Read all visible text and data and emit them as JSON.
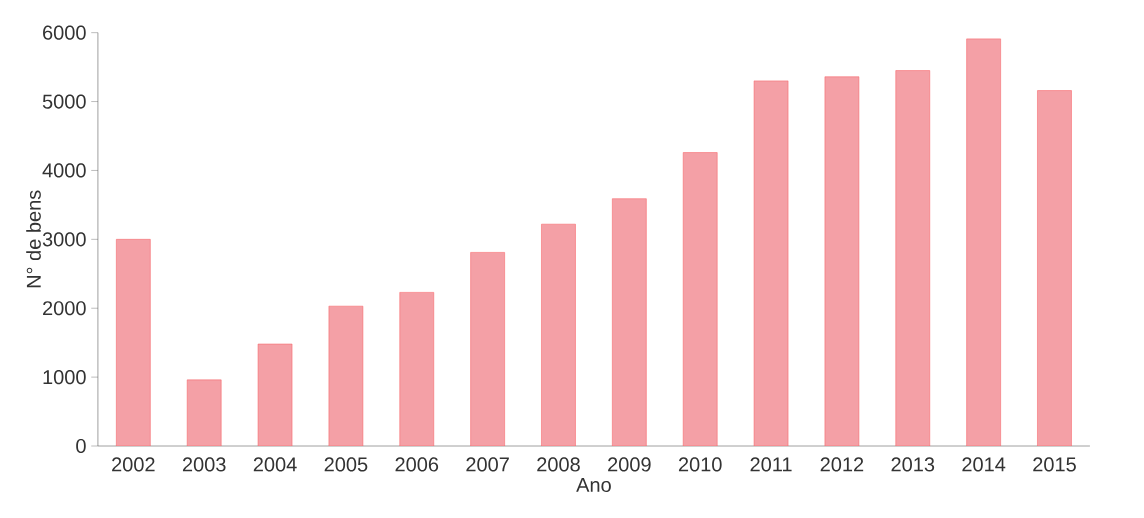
{
  "chart_data": {
    "type": "bar",
    "xlabel": "Ano",
    "ylabel": "N° de bens",
    "categories": [
      "2002",
      "2003",
      "2004",
      "2005",
      "2006",
      "2007",
      "2008",
      "2009",
      "2010",
      "2011",
      "2012",
      "2013",
      "2014",
      "2015"
    ],
    "values": [
      3000,
      960,
      1480,
      2030,
      2230,
      2810,
      3220,
      3590,
      4260,
      5300,
      5360,
      5450,
      5910,
      5160
    ],
    "color": "#f4a0a6",
    "ylim": [
      0,
      6000
    ],
    "yticks": [
      0,
      1000,
      2000,
      3000,
      4000,
      5000,
      6000
    ]
  }
}
